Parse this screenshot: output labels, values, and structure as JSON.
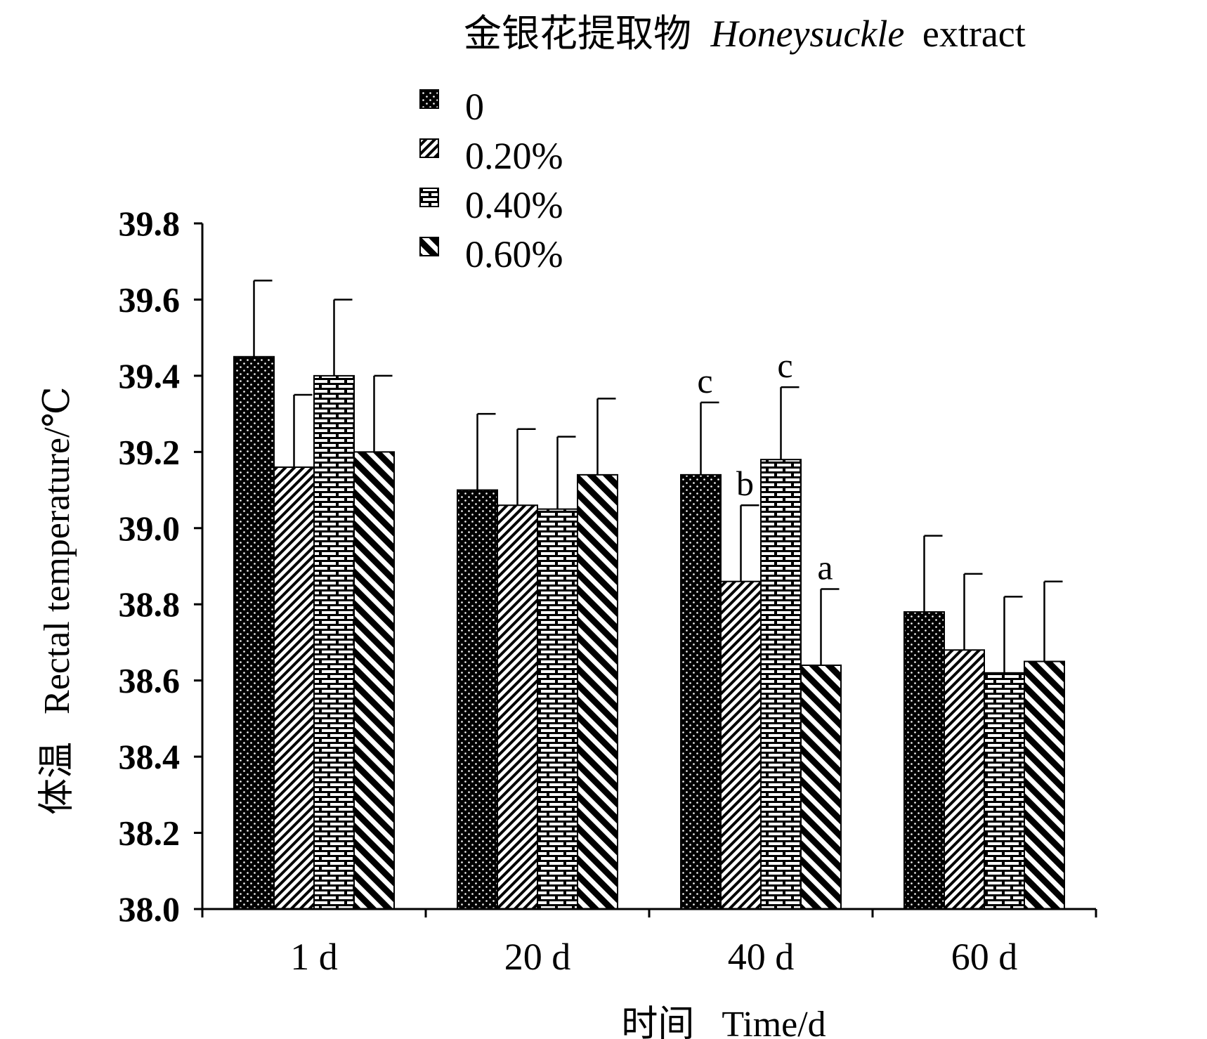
{
  "chart_data": {
    "type": "bar",
    "legend_title": {
      "cn": "金银花提取物",
      "en_italic": "Honeysuckle",
      "en": "extract"
    },
    "ylabel": {
      "cn": "体温",
      "en": "Rectal temperature/℃"
    },
    "xlabel": {
      "cn": "时间",
      "en": "Time/d"
    },
    "categories": [
      "1 d",
      "20 d",
      "40 d",
      "60 d"
    ],
    "series": [
      {
        "name": "0",
        "pattern": "dots",
        "values": [
          39.45,
          39.1,
          39.14,
          38.78
        ],
        "errors": [
          0.2,
          0.2,
          0.19,
          0.2
        ],
        "sig": [
          "",
          "",
          "c",
          ""
        ]
      },
      {
        "name": "0.20%",
        "pattern": "diag-up",
        "values": [
          39.16,
          39.06,
          38.86,
          38.68
        ],
        "errors": [
          0.19,
          0.2,
          0.2,
          0.2
        ],
        "sig": [
          "",
          "",
          "b",
          ""
        ]
      },
      {
        "name": "0.40%",
        "pattern": "brick",
        "values": [
          39.4,
          39.05,
          39.18,
          38.62
        ],
        "errors": [
          0.2,
          0.19,
          0.19,
          0.2
        ],
        "sig": [
          "",
          "",
          "c",
          ""
        ]
      },
      {
        "name": "0.60%",
        "pattern": "diag-down",
        "values": [
          39.2,
          39.14,
          38.64,
          38.65
        ],
        "errors": [
          0.2,
          0.2,
          0.2,
          0.21
        ],
        "sig": [
          "",
          "",
          "a",
          ""
        ]
      }
    ],
    "ylim": [
      38.0,
      39.8
    ],
    "yticks": [
      "38.0",
      "38.2",
      "38.4",
      "38.6",
      "38.8",
      "39.0",
      "39.2",
      "39.4",
      "39.6",
      "39.8"
    ],
    "legend_position": "top-center",
    "grid": false,
    "colors": {
      "bar_fill": "#000000",
      "pattern_ink": "#ffffff",
      "background": "#ffffff"
    }
  }
}
